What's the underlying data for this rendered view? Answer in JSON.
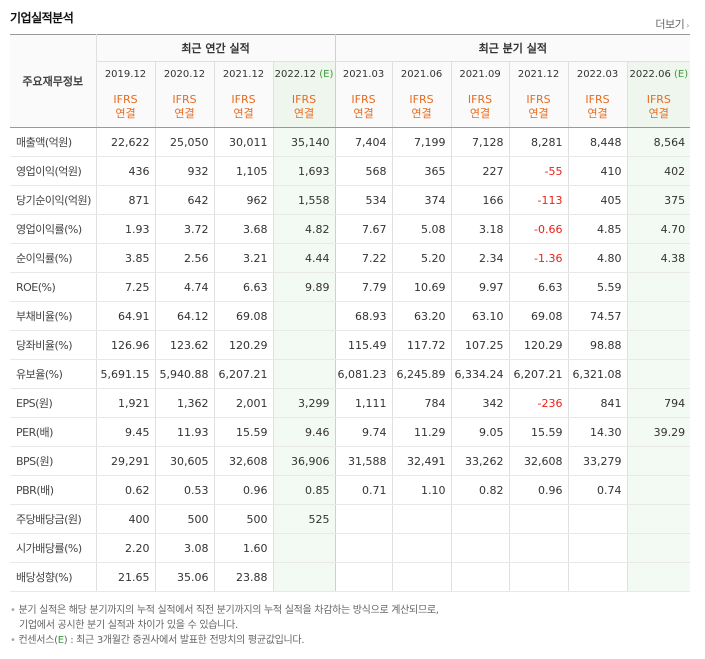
{
  "header": {
    "title": "기업실적분석",
    "more_label": "더보기",
    "more_arrow": "›"
  },
  "table": {
    "row_header_label": "주요재무정보",
    "annual_group_label": "최근 연간 실적",
    "quarter_group_label": "최근 분기 실적",
    "periods": [
      "2019.12",
      "2020.12",
      "2021.12",
      "2022.12",
      "2021.03",
      "2021.06",
      "2021.09",
      "2021.12",
      "2022.03",
      "2022.06"
    ],
    "estimate_suffix": "(E)",
    "ifrs_line1": "IFRS",
    "ifrs_line2": "연결",
    "rows": [
      {
        "label": "매출액(억원)",
        "values": [
          "22,622",
          "25,050",
          "30,011",
          "35,140",
          "7,404",
          "7,199",
          "7,128",
          "8,281",
          "8,448",
          "8,564"
        ]
      },
      {
        "label": "영업이익(억원)",
        "values": [
          "436",
          "932",
          "1,105",
          "1,693",
          "568",
          "365",
          "227",
          "-55",
          "410",
          "402"
        ]
      },
      {
        "label": "당기순이익(억원)",
        "values": [
          "871",
          "642",
          "962",
          "1,558",
          "534",
          "374",
          "166",
          "-113",
          "405",
          "375"
        ]
      },
      {
        "label": "영업이익률(%)",
        "values": [
          "1.93",
          "3.72",
          "3.68",
          "4.82",
          "7.67",
          "5.08",
          "3.18",
          "-0.66",
          "4.85",
          "4.70"
        ]
      },
      {
        "label": "순이익률(%)",
        "values": [
          "3.85",
          "2.56",
          "3.21",
          "4.44",
          "7.22",
          "5.20",
          "2.34",
          "-1.36",
          "4.80",
          "4.38"
        ]
      },
      {
        "label": "ROE(%)",
        "values": [
          "7.25",
          "4.74",
          "6.63",
          "9.89",
          "7.79",
          "10.69",
          "9.97",
          "6.63",
          "5.59",
          ""
        ]
      },
      {
        "label": "부채비율(%)",
        "values": [
          "64.91",
          "64.12",
          "69.08",
          "",
          "68.93",
          "63.20",
          "63.10",
          "69.08",
          "74.57",
          ""
        ]
      },
      {
        "label": "당좌비율(%)",
        "values": [
          "126.96",
          "123.62",
          "120.29",
          "",
          "115.49",
          "117.72",
          "107.25",
          "120.29",
          "98.88",
          ""
        ]
      },
      {
        "label": "유보율(%)",
        "values": [
          "5,691.15",
          "5,940.88",
          "6,207.21",
          "",
          "6,081.23",
          "6,245.89",
          "6,334.24",
          "6,207.21",
          "6,321.08",
          ""
        ]
      },
      {
        "label": "EPS(원)",
        "values": [
          "1,921",
          "1,362",
          "2,001",
          "3,299",
          "1,111",
          "784",
          "342",
          "-236",
          "841",
          "794"
        ]
      },
      {
        "label": "PER(배)",
        "values": [
          "9.45",
          "11.93",
          "15.59",
          "9.46",
          "9.74",
          "11.29",
          "9.05",
          "15.59",
          "14.30",
          "39.29"
        ]
      },
      {
        "label": "BPS(원)",
        "values": [
          "29,291",
          "30,605",
          "32,608",
          "36,906",
          "31,588",
          "32,491",
          "33,262",
          "32,608",
          "33,279",
          ""
        ]
      },
      {
        "label": "PBR(배)",
        "values": [
          "0.62",
          "0.53",
          "0.96",
          "0.85",
          "0.71",
          "1.10",
          "0.82",
          "0.96",
          "0.74",
          ""
        ]
      },
      {
        "label": "주당배당금(원)",
        "values": [
          "400",
          "500",
          "500",
          "525",
          "",
          "",
          "",
          "",
          "",
          ""
        ]
      },
      {
        "label": "시가배당률(%)",
        "values": [
          "2.20",
          "3.08",
          "1.60",
          "",
          "",
          "",
          "",
          "",
          "",
          ""
        ]
      },
      {
        "label": "배당성향(%)",
        "values": [
          "21.65",
          "35.06",
          "23.88",
          "",
          "",
          "",
          "",
          "",
          "",
          ""
        ]
      }
    ]
  },
  "notes": {
    "bullet": "•",
    "note1_line1": "분기 실적은 해당 분기까지의 누적 실적에서 직전 분기까지의 누적 실적을 차감하는 방식으로 계산되므로,",
    "note1_line2": "기업에서 공시한 분기 실적과 차이가 있을 수 있습니다.",
    "note2_prefix": "컨센서스(",
    "note2_e": "E",
    "note2_suffix": ") : 최근 3개월간 증권사에서 발표한 전망치의 평균값입니다."
  },
  "colors": {
    "ifrs": "#e86b1f",
    "estimate": "#3b9a3b",
    "negative": "#e8211a",
    "estimate_bg": "#f3f9f3"
  }
}
